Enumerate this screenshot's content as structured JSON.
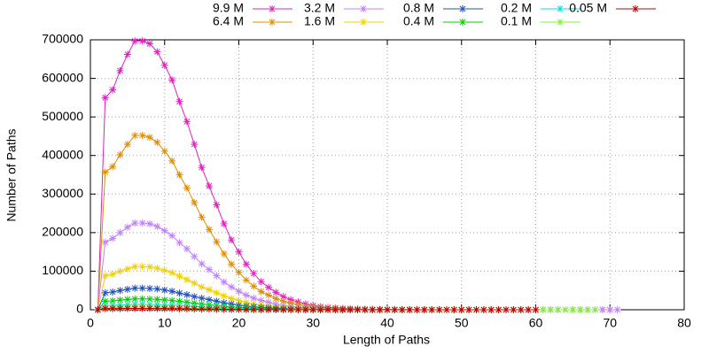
{
  "chart_data": {
    "type": "line",
    "xlabel": "Length of Paths",
    "ylabel": "Number of Paths",
    "xlim": [
      0,
      80
    ],
    "xticks": [
      0,
      10,
      20,
      30,
      40,
      50,
      60,
      70,
      80
    ],
    "ylim": [
      0,
      700000
    ],
    "yticks": [
      0,
      100000,
      200000,
      300000,
      400000,
      500000,
      600000,
      700000
    ],
    "grid": true,
    "legend": "top",
    "marker": "asterisk",
    "x": [
      1,
      2,
      3,
      4,
      5,
      6,
      7,
      8,
      9,
      10,
      11,
      12,
      13,
      14,
      15,
      16,
      17,
      18,
      19,
      20,
      21,
      22,
      23,
      24,
      25,
      26,
      27,
      28,
      29,
      30,
      31,
      32,
      33,
      34,
      35,
      36,
      37,
      38,
      39,
      40,
      41,
      42,
      43,
      44,
      45,
      46,
      47,
      48,
      49,
      50,
      51,
      52,
      53,
      54,
      55,
      56,
      57,
      58,
      59,
      60,
      61,
      62,
      63,
      64,
      65,
      66,
      67,
      68,
      69,
      70,
      71
    ],
    "series": [
      {
        "name": "9.9 M",
        "color": "#e020c0",
        "values": [
          0,
          550000,
          570000,
          620000,
          662000,
          697000,
          697000,
          690000,
          669000,
          634000,
          596000,
          540000,
          488000,
          429000,
          369000,
          321000,
          272000,
          223000,
          181000,
          150000,
          118000,
          94000,
          73000,
          58000,
          45000,
          34000,
          26000,
          20000,
          15000,
          11000,
          8000,
          6000,
          5000,
          3500,
          2800,
          2000,
          1400,
          1000,
          700,
          500,
          300,
          200,
          100,
          100,
          0,
          null,
          null,
          null,
          null,
          null,
          null,
          null,
          null,
          null,
          null,
          null,
          null,
          null,
          null,
          null,
          null,
          null,
          null,
          null,
          null,
          null,
          null,
          null,
          null,
          null,
          null
        ]
      },
      {
        "name": "6.4 M",
        "color": "#e08c00",
        "values": [
          0,
          357000,
          371000,
          402000,
          429000,
          452000,
          452000,
          447000,
          434000,
          411000,
          386000,
          350000,
          316000,
          278000,
          240000,
          208000,
          176000,
          145000,
          118000,
          97000,
          77000,
          61000,
          47000,
          38000,
          29000,
          22000,
          17000,
          13000,
          9500,
          7200,
          5400,
          4100,
          3200,
          2300,
          1800,
          1400,
          900,
          700,
          450,
          360,
          300,
          250,
          200,
          150,
          100,
          0,
          0,
          0,
          0,
          0,
          0,
          0,
          0,
          0,
          0,
          0,
          0,
          0,
          0,
          0,
          0,
          0,
          0,
          0,
          0,
          0,
          0,
          0,
          0,
          0,
          null
        ]
      },
      {
        "name": "3.2 M",
        "color": "#c080ff",
        "values": [
          0,
          175000,
          185000,
          200000,
          214000,
          225000,
          225000,
          223000,
          216000,
          205000,
          192000,
          174000,
          158000,
          138000,
          119000,
          104000,
          88000,
          72000,
          59000,
          48000,
          38000,
          30000,
          24000,
          19000,
          14000,
          11000,
          8300,
          6300,
          4700,
          3600,
          2700,
          2000,
          1600,
          1100,
          900,
          700,
          450,
          340,
          230,
          180,
          150,
          120,
          100,
          80,
          60,
          50,
          40,
          30,
          20,
          20,
          0,
          0,
          0,
          0,
          0,
          0,
          0,
          0,
          0,
          0,
          0,
          0,
          0,
          0,
          0,
          0,
          0,
          0,
          0,
          0,
          0
        ]
      },
      {
        "name": "1.6 M",
        "color": "#f0d000",
        "values": [
          0,
          88000,
          92000,
          100000,
          106000,
          112000,
          112000,
          111000,
          108000,
          102000,
          96000,
          87000,
          78000,
          69000,
          59000,
          52000,
          44000,
          36000,
          29000,
          24000,
          19000,
          15000,
          12000,
          9300,
          7200,
          5500,
          4100,
          3100,
          2400,
          1800,
          1300,
          1000,
          800,
          560,
          450,
          340,
          220,
          170,
          110,
          90,
          70,
          60,
          50,
          40,
          30,
          20,
          10,
          10,
          0,
          0,
          null,
          null,
          null,
          null,
          null,
          null,
          null,
          null,
          null,
          null,
          null,
          null,
          null,
          null,
          null,
          null,
          null,
          null,
          null,
          null,
          null
        ]
      },
      {
        "name": "0.8 M",
        "color": "#2050c0",
        "values": [
          0,
          44000,
          46000,
          50000,
          53000,
          56000,
          56000,
          55000,
          54000,
          51000,
          48000,
          43000,
          39000,
          34000,
          30000,
          26000,
          22000,
          18000,
          15000,
          12000,
          9500,
          7600,
          5900,
          4600,
          3600,
          2700,
          2100,
          1600,
          1200,
          900,
          670,
          500,
          400,
          280,
          220,
          170,
          110,
          80,
          60,
          40,
          30,
          20,
          10,
          10,
          0,
          null,
          null,
          null,
          null,
          null,
          null,
          null,
          null,
          null,
          null,
          null,
          null,
          null,
          null,
          null,
          null,
          null,
          null,
          null,
          null,
          null,
          null,
          null,
          null,
          null,
          null
        ]
      },
      {
        "name": "0.4 M",
        "color": "#00d000",
        "values": [
          0,
          22000,
          23000,
          25000,
          26600,
          28000,
          28000,
          27700,
          26900,
          25500,
          23900,
          21700,
          19600,
          17200,
          14800,
          12900,
          10900,
          9000,
          7300,
          6000,
          4800,
          3800,
          2900,
          2300,
          1800,
          1400,
          1000,
          800,
          600,
          450,
          340,
          250,
          200,
          140,
          110,
          80,
          60,
          40,
          30,
          20,
          null,
          null,
          null,
          null,
          null,
          null,
          null,
          null,
          null,
          null,
          null,
          null,
          null,
          null,
          null,
          null,
          null,
          null,
          null,
          null,
          null,
          null,
          null,
          null,
          null,
          null,
          null,
          null,
          null,
          null,
          null
        ]
      },
      {
        "name": "0.2 M",
        "color": "#00e0e0",
        "values": [
          0,
          11000,
          11500,
          12500,
          13300,
          14000,
          14000,
          13900,
          13400,
          12700,
          12000,
          10800,
          9800,
          8600,
          7400,
          6400,
          5500,
          4500,
          3600,
          3000,
          2400,
          1900,
          1500,
          1200,
          900,
          700,
          500,
          400,
          300,
          220,
          170,
          130,
          100,
          70,
          60,
          40,
          30,
          20,
          null,
          null,
          null,
          null,
          null,
          null,
          null,
          null,
          null,
          null,
          null,
          null,
          null,
          null,
          null,
          null,
          null,
          null,
          null,
          null,
          null,
          null,
          null,
          null,
          null,
          null,
          null,
          null,
          null,
          null,
          null,
          null,
          null
        ]
      },
      {
        "name": "0.1 M",
        "color": "#80f040",
        "values": [
          0,
          5500,
          5700,
          6200,
          6600,
          7000,
          7000,
          6900,
          6700,
          6400,
          6000,
          5400,
          4900,
          4300,
          3700,
          3200,
          2700,
          2200,
          1800,
          1500,
          1200,
          950,
          740,
          580,
          450,
          340,
          260,
          200,
          150,
          110,
          80,
          60,
          50,
          40,
          30,
          20,
          15,
          10,
          7,
          5,
          0,
          0,
          0,
          0,
          0,
          0,
          0,
          0,
          0,
          0,
          0,
          0,
          0,
          0,
          0,
          0,
          0,
          0,
          0,
          0,
          0,
          0,
          0,
          0,
          0,
          0,
          0,
          0,
          null,
          null,
          null
        ]
      },
      {
        "name": "0.05 M",
        "color": "#c00000",
        "values": [
          0,
          2800,
          2900,
          3100,
          3300,
          3500,
          3500,
          3450,
          3350,
          3200,
          3000,
          2700,
          2450,
          2150,
          1850,
          1600,
          1350,
          1100,
          900,
          750,
          600,
          470,
          370,
          290,
          220,
          170,
          130,
          100,
          70,
          55,
          40,
          30,
          25,
          20,
          15,
          10,
          7,
          5,
          4,
          3,
          0,
          0,
          0,
          0,
          0,
          0,
          0,
          0,
          0,
          0,
          0,
          0,
          0,
          0,
          0,
          0,
          0,
          0,
          0,
          0,
          null,
          null,
          null,
          null,
          null,
          null,
          null,
          null,
          null,
          null,
          null
        ]
      }
    ]
  }
}
